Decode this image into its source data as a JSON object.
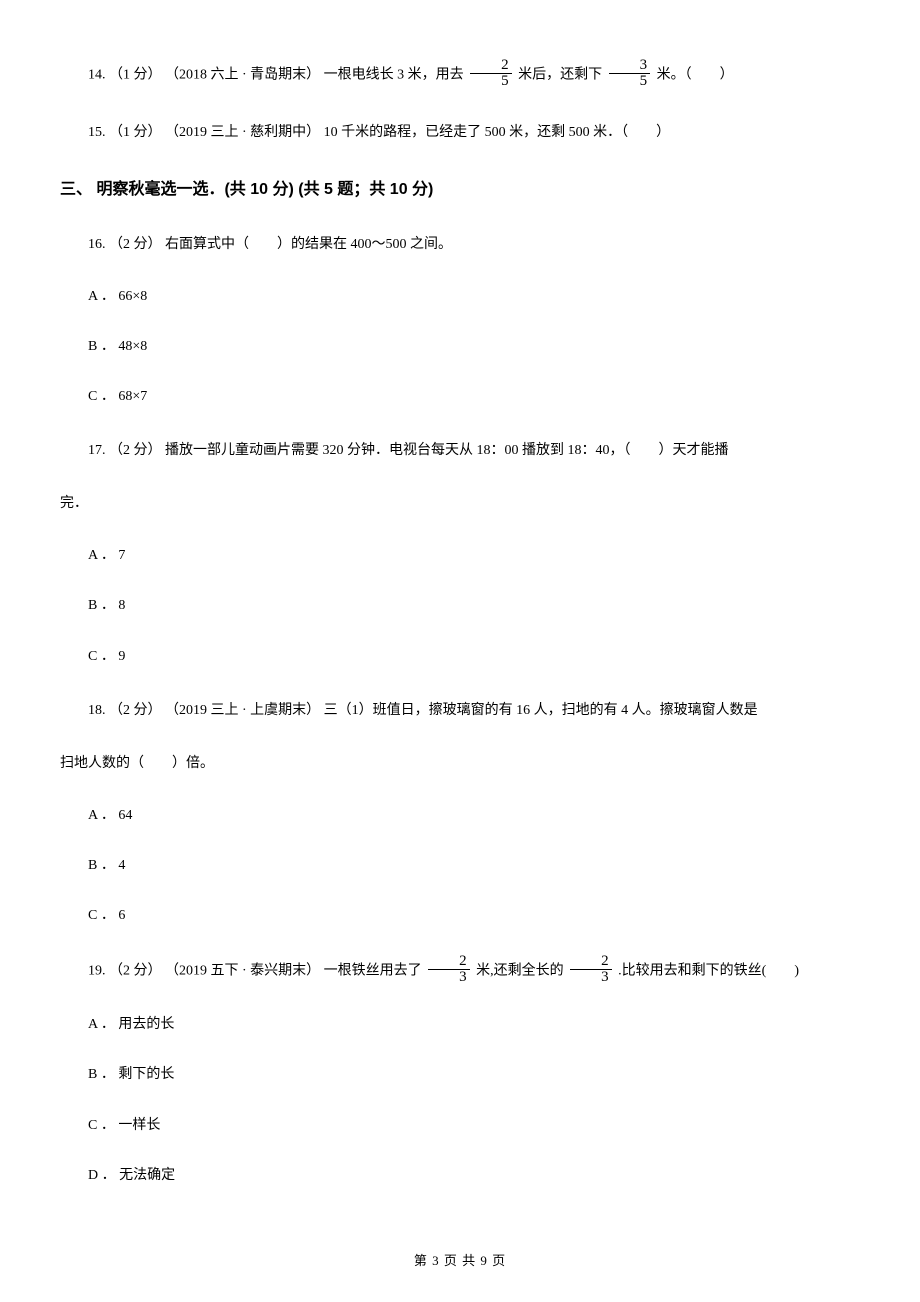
{
  "q14": {
    "number": "14.",
    "points": "（1 分）",
    "source": "（2018 六上 · 青岛期末）",
    "text1": "一根电线长 3 米，用去 ",
    "frac1_num": "2",
    "frac1_den": "5",
    "text2": " 米后，还剩下 ",
    "frac2_num": "3",
    "frac2_den": "5",
    "text3": " 米。（　　）"
  },
  "q15": {
    "number": "15.",
    "points": "（1 分）",
    "source": "（2019 三上 · 慈利期中）",
    "text": "10 千米的路程，已经走了 500 米，还剩 500 米．（　　）"
  },
  "section3": {
    "title": "三、 明察秋毫选一选．(共 10 分)  (共 5 题；共 10 分)"
  },
  "q16": {
    "number": "16.",
    "points": "（2 分）",
    "text": "右面算式中（　　）的结果在 400～500 之间。",
    "optA": "A ． 66×8",
    "optB": "B ． 48×8",
    "optC": "C ． 68×7"
  },
  "q17": {
    "number": "17.",
    "points": "（2 分）",
    "text": "播放一部儿童动画片需要 320 分钟．电视台每天从 18：00 播放到 18：40，（　　）天才能播",
    "textCont": "完．",
    "optA": "A ． 7",
    "optB": "B ． 8",
    "optC": "C ． 9"
  },
  "q18": {
    "number": "18.",
    "points": "（2 分）",
    "source": "（2019 三上 · 上虞期末）",
    "text": "三（1）班值日，擦玻璃窗的有 16 人，扫地的有 4 人。擦玻璃窗人数是",
    "textCont": "扫地人数的（　　）倍。",
    "optA": "A ． 64",
    "optB": "B ． 4",
    "optC": "C ． 6"
  },
  "q19": {
    "number": "19.",
    "points": "（2 分）",
    "source": "（2019 五下 · 泰兴期末）",
    "text1": "一根铁丝用去了 ",
    "frac1_num": "2",
    "frac1_den": "3",
    "text2": " 米,还剩全长的 ",
    "frac2_num": "2",
    "frac2_den": "3",
    "text3": " .比较用去和剩下的铁丝(　　)",
    "optA": "A ． 用去的长",
    "optB": "B ． 剩下的长",
    "optC": "C ． 一样长",
    "optD": "D ． 无法确定"
  },
  "footer": {
    "text": "第 3 页 共 9 页"
  }
}
